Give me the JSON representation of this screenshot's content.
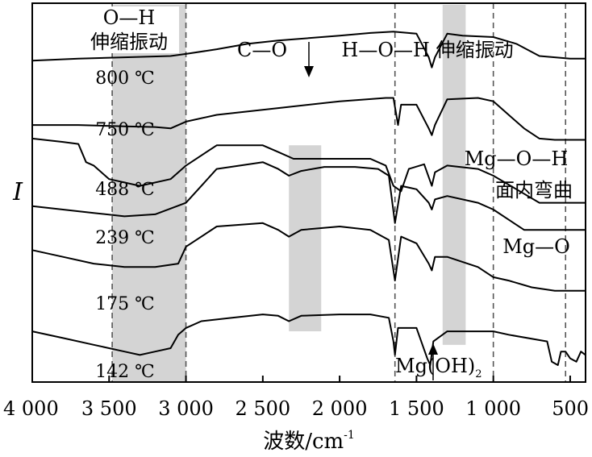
{
  "chart_data": {
    "type": "line",
    "title": "",
    "xlabel": "波数/cm",
    "xlabel_sup": "-1",
    "ylabel": "I",
    "xlim": [
      4000,
      400
    ],
    "x_reversed": true,
    "y_unit": "relative intensity, stacked offsets",
    "grid": false,
    "xticks": [
      {
        "value": 4000,
        "label": "4 000"
      },
      {
        "value": 3500,
        "label": "3 500"
      },
      {
        "value": 3000,
        "label": "3 000"
      },
      {
        "value": 2500,
        "label": "2 500"
      },
      {
        "value": 2000,
        "label": "2 000"
      },
      {
        "value": 1500,
        "label": "1 500"
      },
      {
        "value": 1000,
        "label": "1 000"
      },
      {
        "value": 500,
        "label": "500"
      }
    ],
    "shaded_bands": [
      {
        "from": 3480,
        "to": 3000
      },
      {
        "from": 2330,
        "to": 2120
      },
      {
        "from": 1330,
        "to": 1180
      }
    ],
    "reference_lines": [
      3480,
      3000,
      1640,
      1000,
      530
    ],
    "annotations": {
      "oh_stretch_1": "O—H",
      "oh_stretch_2": "伸缩振动",
      "co": "C—O",
      "hoh": "H—O—H 伸缩振动",
      "mgoh_1": "Mg—O—H",
      "mgoh_2": "面内弯曲",
      "mgo": "Mg—O",
      "mgoh2": "Mg(OH)",
      "mgoh2_sub": "2"
    },
    "series": [
      {
        "name": "800 ℃",
        "x": [
          4000,
          3700,
          3400,
          3100,
          3000,
          2800,
          2600,
          2400,
          2000,
          1800,
          1650,
          1500,
          1420,
          1400,
          1380,
          1300,
          1200,
          1000,
          850,
          700,
          600,
          500,
          400
        ],
        "values": [
          5.55,
          5.58,
          5.6,
          5.62,
          5.65,
          5.72,
          5.8,
          5.85,
          5.92,
          5.96,
          5.98,
          5.95,
          5.6,
          5.45,
          5.6,
          5.95,
          5.92,
          5.9,
          5.8,
          5.62,
          5.6,
          5.58,
          5.58
        ]
      },
      {
        "name": "750 ℃",
        "x": [
          4000,
          3700,
          3400,
          3200,
          3100,
          3000,
          2800,
          2400,
          2000,
          1700,
          1650,
          1620,
          1600,
          1500,
          1420,
          1400,
          1380,
          1300,
          1100,
          1000,
          900,
          800,
          700,
          600,
          500,
          400
        ],
        "values": [
          4.6,
          4.6,
          4.58,
          4.57,
          4.55,
          4.65,
          4.75,
          4.85,
          4.95,
          5.0,
          5.0,
          4.6,
          4.9,
          4.9,
          4.55,
          4.45,
          4.6,
          4.98,
          5.0,
          4.95,
          4.75,
          4.55,
          4.4,
          4.38,
          4.38,
          4.38
        ]
      },
      {
        "name": "488 ℃",
        "x": [
          4000,
          3800,
          3700,
          3650,
          3600,
          3500,
          3300,
          3100,
          3000,
          2800,
          2500,
          2400,
          2300,
          2200,
          2000,
          1800,
          1700,
          1650,
          1600,
          1550,
          1450,
          1400,
          1380,
          1300,
          1100,
          1000,
          850,
          700,
          600,
          500,
          400
        ],
        "values": [
          4.4,
          4.35,
          4.32,
          4.05,
          4.0,
          3.8,
          3.7,
          3.8,
          4.0,
          4.3,
          4.3,
          4.2,
          4.1,
          4.1,
          4.1,
          4.1,
          4.0,
          3.7,
          3.62,
          3.95,
          4.02,
          3.7,
          3.9,
          4.0,
          3.95,
          3.85,
          3.65,
          3.45,
          3.45,
          3.45,
          3.45
        ]
      },
      {
        "name": "239 ℃",
        "x": [
          4000,
          3800,
          3600,
          3400,
          3200,
          3000,
          2800,
          2500,
          2400,
          2330,
          2250,
          2100,
          1900,
          1750,
          1680,
          1640,
          1600,
          1500,
          1420,
          1400,
          1380,
          1300,
          1100,
          1000,
          900,
          800,
          600,
          500,
          400
        ],
        "values": [
          3.4,
          3.35,
          3.3,
          3.25,
          3.28,
          3.45,
          3.95,
          4.05,
          3.95,
          3.85,
          3.92,
          3.98,
          3.98,
          3.95,
          3.85,
          3.15,
          3.7,
          3.65,
          3.45,
          3.35,
          3.5,
          3.55,
          3.45,
          3.35,
          3.2,
          3.05,
          3.05,
          3.05,
          3.05
        ]
      },
      {
        "name": "175 ℃",
        "x": [
          4000,
          3800,
          3600,
          3400,
          3200,
          3050,
          3000,
          2800,
          2500,
          2400,
          2330,
          2250,
          2000,
          1800,
          1680,
          1640,
          1600,
          1500,
          1420,
          1400,
          1380,
          1300,
          1100,
          1000,
          900,
          750,
          600,
          500,
          400
        ],
        "values": [
          2.75,
          2.65,
          2.55,
          2.5,
          2.5,
          2.55,
          2.8,
          3.1,
          3.15,
          3.05,
          2.95,
          3.05,
          3.1,
          3.05,
          2.9,
          2.3,
          2.95,
          2.85,
          2.55,
          2.45,
          2.65,
          2.65,
          2.5,
          2.35,
          2.3,
          2.2,
          2.15,
          2.15,
          2.15
        ]
      },
      {
        "name": "142 ℃",
        "x": [
          4000,
          3800,
          3600,
          3400,
          3300,
          3200,
          3100,
          3050,
          3000,
          2900,
          2700,
          2500,
          2400,
          2330,
          2250,
          2000,
          1800,
          1680,
          1650,
          1640,
          1620,
          1500,
          1430,
          1410,
          1390,
          1300,
          1100,
          1000,
          900,
          650,
          620,
          580,
          560,
          530,
          500,
          460,
          430,
          400
        ],
        "values": [
          1.55,
          1.45,
          1.35,
          1.25,
          1.2,
          1.25,
          1.3,
          1.5,
          1.6,
          1.7,
          1.75,
          1.8,
          1.78,
          1.7,
          1.78,
          1.8,
          1.8,
          1.75,
          1.4,
          1.2,
          1.6,
          1.6,
          1.15,
          1.05,
          1.4,
          1.55,
          1.55,
          1.55,
          1.5,
          1.4,
          1.1,
          1.05,
          1.25,
          1.25,
          1.15,
          1.1,
          1.25,
          1.2
        ]
      }
    ]
  }
}
